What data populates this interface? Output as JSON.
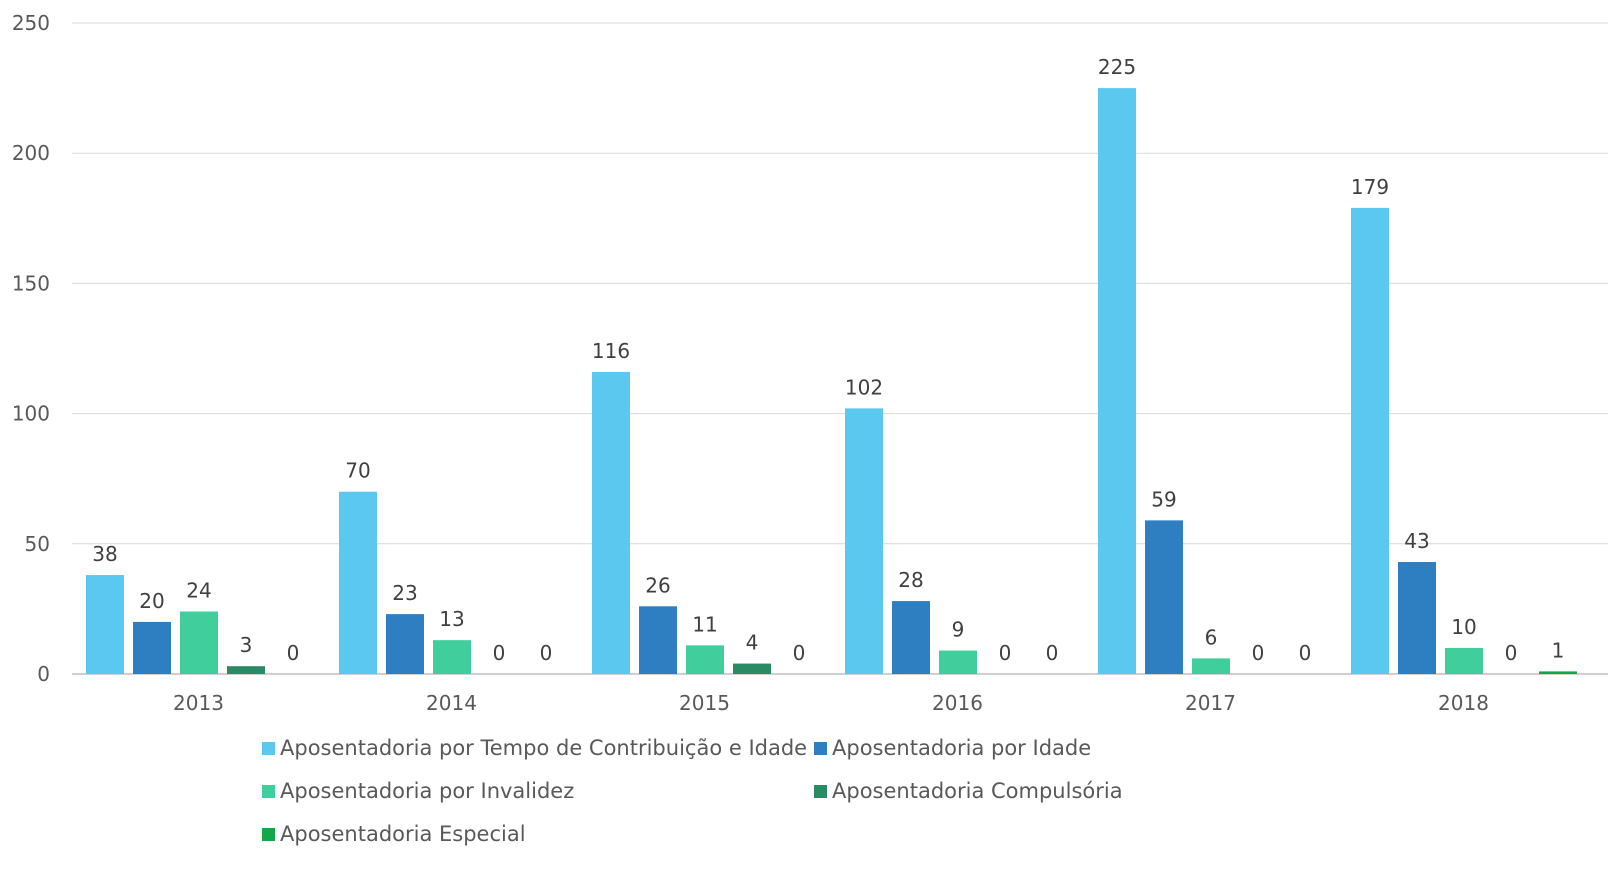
{
  "chart_data": {
    "type": "bar",
    "categories": [
      "2013",
      "2014",
      "2015",
      "2016",
      "2017",
      "2018"
    ],
    "series": [
      {
        "name": "Aposentadoria por Tempo de Contribuição e Idade",
        "color": "#5bc8ef",
        "values": [
          38,
          70,
          116,
          102,
          225,
          179
        ]
      },
      {
        "name": "Aposentadoria por Idade",
        "color": "#2e7fc2",
        "values": [
          20,
          23,
          26,
          28,
          59,
          43
        ]
      },
      {
        "name": "Aposentadoria por Invalidez",
        "color": "#40cf9c",
        "values": [
          24,
          13,
          11,
          9,
          6,
          10
        ]
      },
      {
        "name": "Aposentadoria Compulsória",
        "color": "#2a8a64",
        "values": [
          3,
          0,
          4,
          0,
          0,
          0
        ]
      },
      {
        "name": "Aposentadoria Especial",
        "color": "#12a84a",
        "values": [
          0,
          0,
          0,
          0,
          0,
          1
        ]
      }
    ],
    "ylim": [
      0,
      250
    ],
    "yticks": [
      0,
      50,
      100,
      150,
      200,
      250
    ],
    "grid": true,
    "legend": "bottom",
    "data_labels": true
  }
}
